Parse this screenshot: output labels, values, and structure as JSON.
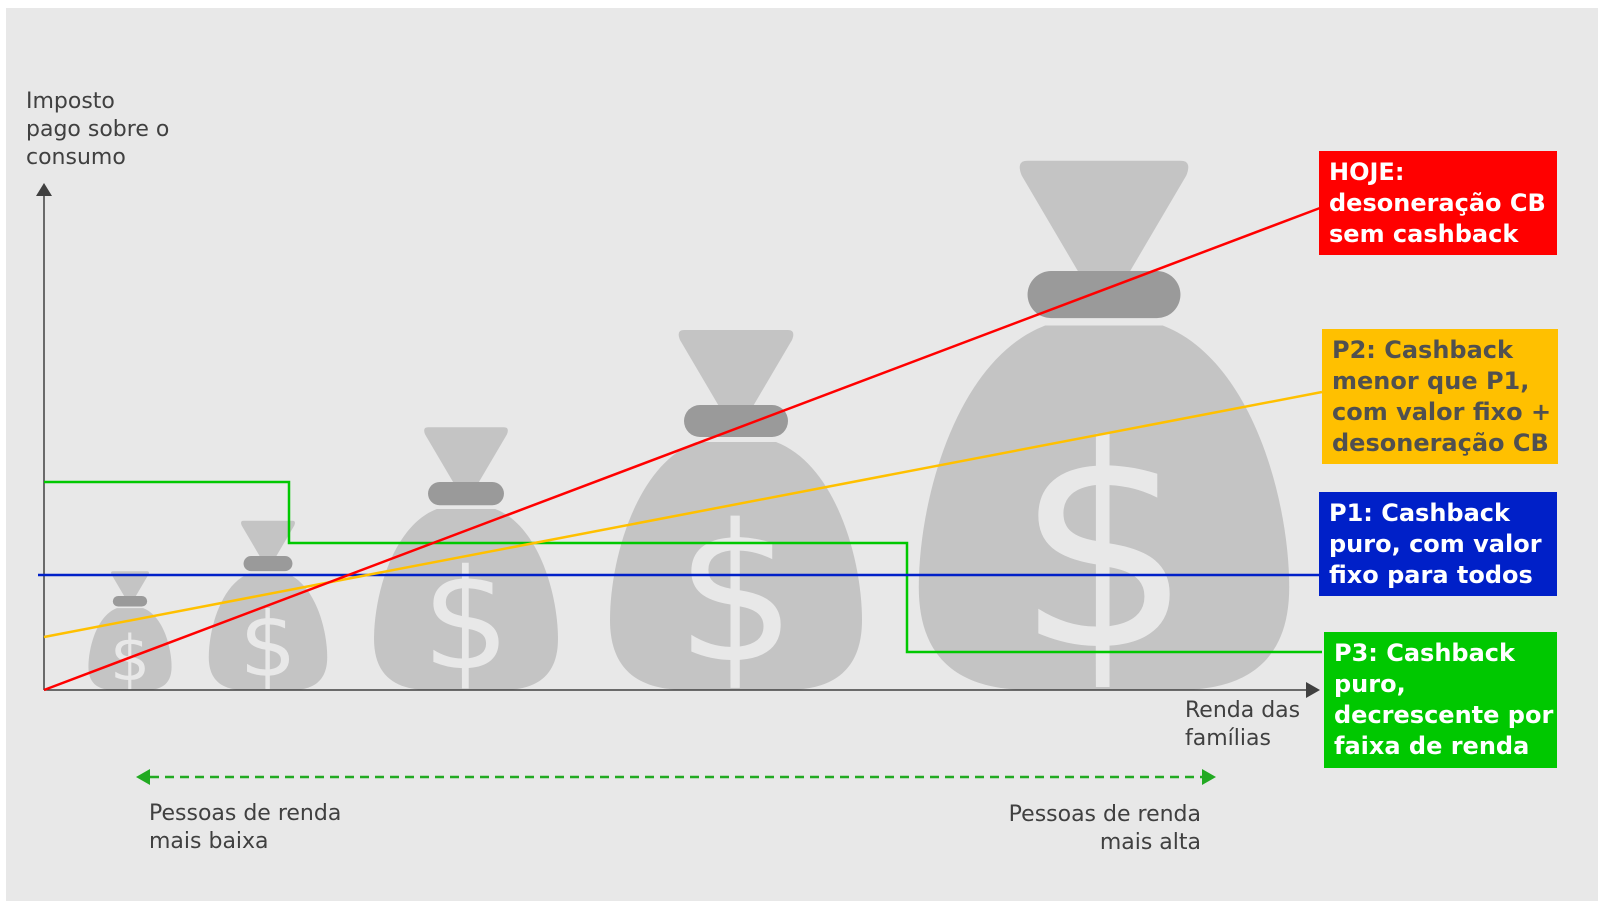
{
  "axes": {
    "y_label": [
      "Imposto",
      "pago sobre o",
      "consumo"
    ],
    "x_label": [
      "Renda das",
      "famílias"
    ]
  },
  "range": {
    "low_label": [
      "Pessoas de renda",
      "mais baixa"
    ],
    "high_label": [
      "Pessoas de renda",
      "mais alta"
    ]
  },
  "legend": {
    "hoje": {
      "lines": [
        "HOJE:",
        "desoneração CB",
        "sem cashback"
      ],
      "color": "#ff0000"
    },
    "p2": {
      "lines": [
        "P2: Cashback",
        "menor que P1,",
        "com valor fixo +",
        "desoneração CB"
      ],
      "color": "#ffc000"
    },
    "p1": {
      "lines": [
        "P1: Cashback",
        "puro, com valor",
        "fixo para todos"
      ],
      "color": "#0020c8"
    },
    "p3": {
      "lines": [
        "P3: Cashback",
        "puro,",
        "decrescente por",
        "faixa de renda"
      ],
      "color": "#00c800"
    }
  },
  "icons": {
    "money_bag": "money-bag-icon"
  },
  "colors": {
    "bag_light": "#c4c4c4",
    "bag_dark": "#9a9a9a",
    "dollar": "#e8e8e8",
    "axis": "#404040",
    "range_arrow": "#22aa22"
  }
}
